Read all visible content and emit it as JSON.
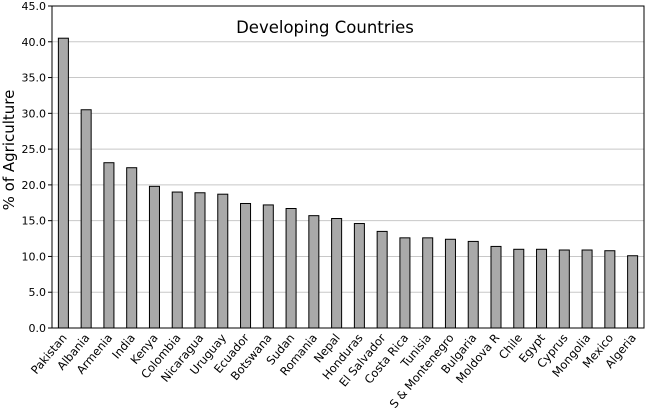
{
  "chart_data": {
    "type": "bar",
    "title": "Developing Countries",
    "xlabel": "",
    "ylabel": "% of Agriculture",
    "ylim": [
      0,
      45
    ],
    "yticks": [
      "0.0",
      "5.0",
      "10.0",
      "15.0",
      "20.0",
      "25.0",
      "30.0",
      "35.0",
      "40.0",
      "45.0"
    ],
    "grid": true,
    "bar_color": "#a9a9a9",
    "categories": [
      "Pakistan",
      "Albania",
      "Armenia",
      "India",
      "Kenya",
      "Colombia",
      "Nicaragua",
      "Uruguay",
      "Ecuador",
      "Botswana",
      "Sudan",
      "Romania",
      "Nepal",
      "Honduras",
      "El Salvador",
      "Costa Rica",
      "Tunisia",
      "S & Montenegro",
      "Bulgaria",
      "Moldova R",
      "Chile",
      "Egypt",
      "Cyprus",
      "Mongolia",
      "Mexico",
      "Algeria"
    ],
    "values": [
      40.5,
      30.5,
      23.1,
      22.4,
      19.8,
      19.0,
      18.9,
      18.7,
      17.4,
      17.2,
      16.7,
      15.7,
      15.3,
      14.6,
      13.5,
      12.6,
      12.6,
      12.4,
      12.1,
      11.4,
      11.0,
      11.0,
      10.9,
      10.9,
      10.8,
      10.1
    ]
  }
}
